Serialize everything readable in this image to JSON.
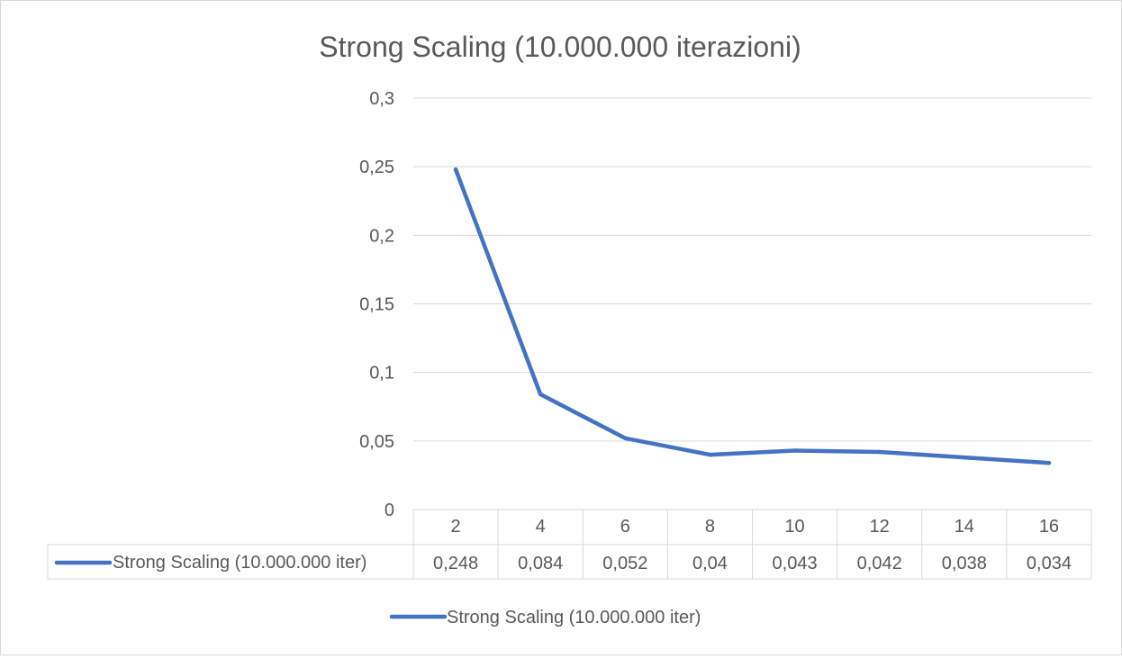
{
  "chart_data": {
    "type": "line",
    "title": "Strong Scaling (10.000.000 iterazioni)",
    "xlabel": "",
    "ylabel": "",
    "categories": [
      "2",
      "4",
      "6",
      "8",
      "10",
      "12",
      "14",
      "16"
    ],
    "series": [
      {
        "name": "Strong Scaling (10.000.000 iter)",
        "values": [
          0.248,
          0.084,
          0.052,
          0.04,
          0.043,
          0.042,
          0.038,
          0.034
        ],
        "value_labels": [
          "0,248",
          "0,084",
          "0,052",
          "0,04",
          "0,043",
          "0,042",
          "0,038",
          "0,034"
        ],
        "color": "#4472c4"
      }
    ],
    "ylim": [
      0,
      0.3
    ],
    "yticks": [
      0,
      0.05,
      0.1,
      0.15,
      0.2,
      0.25,
      0.3
    ],
    "ytick_labels": [
      "0",
      "0,05",
      "0,1",
      "0,15",
      "0,2",
      "0,25",
      "0,3"
    ],
    "grid": true,
    "data_table": true,
    "legend": {
      "position": "bottom",
      "entries": [
        "Strong Scaling (10.000.000 iter)"
      ]
    },
    "colors": {
      "series": "#4472c4",
      "gridline": "#d9d9d9",
      "text": "#595959"
    }
  }
}
